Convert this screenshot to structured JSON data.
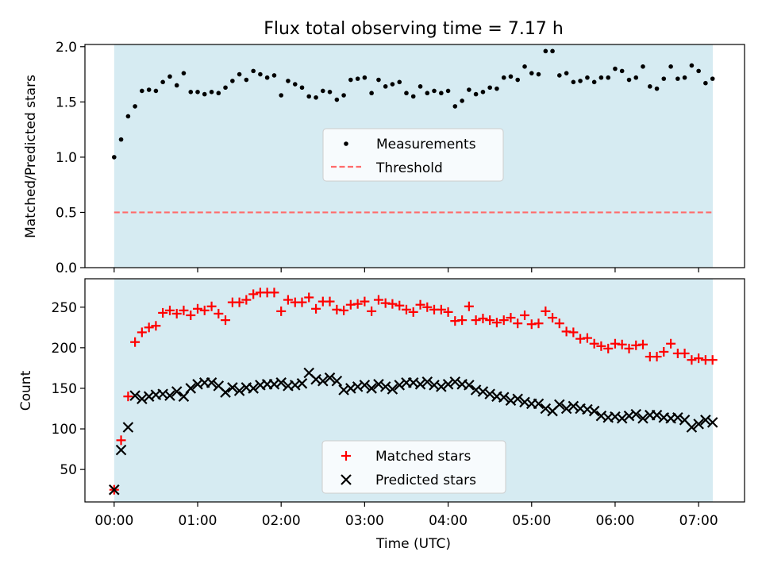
{
  "title": "Flux total observing time = 7.17 h",
  "chart_data": [
    {
      "type": "scatter",
      "ylabel": "Matched/Predicted stars",
      "xlabel": "",
      "x_unit": "hours since 00:00 UTC",
      "xlim": [
        -0.35,
        7.55
      ],
      "ylim": [
        0,
        2.02
      ],
      "yticks": [
        0.0,
        0.5,
        1.0,
        1.5,
        2.0
      ],
      "ytick_labels": [
        "0.0",
        "0.5",
        "1.0",
        "1.5",
        "2.0"
      ],
      "shaded_span": [
        0,
        7.17
      ],
      "shade_color": "#add8e6",
      "legend_position": "center",
      "series": [
        {
          "name": "Measurements",
          "marker": "dot",
          "color": "#000000",
          "x": [
            0.0,
            0.083,
            0.167,
            0.25,
            0.333,
            0.417,
            0.5,
            0.583,
            0.667,
            0.75,
            0.833,
            0.917,
            1.0,
            1.083,
            1.167,
            1.25,
            1.333,
            1.417,
            1.5,
            1.583,
            1.667,
            1.75,
            1.833,
            1.917,
            2.0,
            2.083,
            2.167,
            2.25,
            2.333,
            2.417,
            2.5,
            2.583,
            2.667,
            2.75,
            2.833,
            2.917,
            3.0,
            3.083,
            3.167,
            3.25,
            3.333,
            3.417,
            3.5,
            3.583,
            3.667,
            3.75,
            3.833,
            3.917,
            4.0,
            4.083,
            4.167,
            4.25,
            4.333,
            4.417,
            4.5,
            4.583,
            4.667,
            4.75,
            4.833,
            4.917,
            5.0,
            5.083,
            5.167,
            5.25,
            5.333,
            5.417,
            5.5,
            5.583,
            5.667,
            5.75,
            5.833,
            5.917,
            6.0,
            6.083,
            6.167,
            6.25,
            6.333,
            6.417,
            6.5,
            6.583,
            6.667,
            6.75,
            6.833,
            6.917,
            7.0,
            7.083,
            7.167
          ],
          "y": [
            1.0,
            1.16,
            1.37,
            1.46,
            1.6,
            1.61,
            1.6,
            1.68,
            1.73,
            1.65,
            1.76,
            1.59,
            1.59,
            1.57,
            1.59,
            1.58,
            1.63,
            1.69,
            1.75,
            1.7,
            1.78,
            1.75,
            1.72,
            1.74,
            1.56,
            1.69,
            1.66,
            1.63,
            1.55,
            1.54,
            1.6,
            1.59,
            1.52,
            1.56,
            1.7,
            1.71,
            1.72,
            1.58,
            1.7,
            1.64,
            1.66,
            1.68,
            1.58,
            1.55,
            1.64,
            1.58,
            1.6,
            1.58,
            1.6,
            1.46,
            1.51,
            1.61,
            1.57,
            1.59,
            1.63,
            1.62,
            1.72,
            1.73,
            1.7,
            1.82,
            1.76,
            1.75,
            1.96,
            1.96,
            1.74,
            1.76,
            1.68,
            1.69,
            1.72,
            1.68,
            1.72,
            1.72,
            1.8,
            1.78,
            1.7,
            1.72,
            1.82,
            1.64,
            1.62,
            1.71,
            1.82,
            1.71,
            1.72,
            1.83,
            1.78,
            1.67,
            1.71
          ]
        },
        {
          "name": "Threshold",
          "type": "line",
          "style": "dashed",
          "color": "#ff6b6b",
          "x": [
            0.0,
            7.17
          ],
          "y": [
            0.5,
            0.5
          ]
        }
      ]
    },
    {
      "type": "scatter",
      "ylabel": "Count",
      "xlabel": "Time (UTC)",
      "x_unit": "hours since 00:00 UTC",
      "xlim": [
        -0.35,
        7.55
      ],
      "ylim": [
        10,
        285
      ],
      "yticks": [
        50,
        100,
        150,
        200,
        250
      ],
      "ytick_labels": [
        "50",
        "100",
        "150",
        "200",
        "250"
      ],
      "xticks": [
        0,
        1,
        2,
        3,
        4,
        5,
        6,
        7
      ],
      "xtick_labels": [
        "00:00",
        "01:00",
        "02:00",
        "03:00",
        "04:00",
        "05:00",
        "06:00",
        "07:00"
      ],
      "shaded_span": [
        0,
        7.17
      ],
      "shade_color": "#add8e6",
      "legend_position": "lower center",
      "series": [
        {
          "name": "Matched stars",
          "marker": "plus",
          "color": "#ff0000",
          "x": [
            0.0,
            0.083,
            0.167,
            0.25,
            0.333,
            0.417,
            0.5,
            0.583,
            0.667,
            0.75,
            0.833,
            0.917,
            1.0,
            1.083,
            1.167,
            1.25,
            1.333,
            1.417,
            1.5,
            1.583,
            1.667,
            1.75,
            1.833,
            1.917,
            2.0,
            2.083,
            2.167,
            2.25,
            2.333,
            2.417,
            2.5,
            2.583,
            2.667,
            2.75,
            2.833,
            2.917,
            3.0,
            3.083,
            3.167,
            3.25,
            3.333,
            3.417,
            3.5,
            3.583,
            3.667,
            3.75,
            3.833,
            3.917,
            4.0,
            4.083,
            4.167,
            4.25,
            4.333,
            4.417,
            4.5,
            4.583,
            4.667,
            4.75,
            4.833,
            4.917,
            5.0,
            5.083,
            5.167,
            5.25,
            5.333,
            5.417,
            5.5,
            5.583,
            5.667,
            5.75,
            5.833,
            5.917,
            6.0,
            6.083,
            6.167,
            6.25,
            6.333,
            6.417,
            6.5,
            6.583,
            6.667,
            6.75,
            6.833,
            6.917,
            7.0,
            7.083,
            7.167
          ],
          "y": [
            25,
            86,
            140,
            207,
            219,
            225,
            227,
            243,
            246,
            242,
            246,
            240,
            248,
            246,
            251,
            242,
            234,
            256,
            256,
            259,
            266,
            268,
            268,
            268,
            245,
            259,
            256,
            256,
            262,
            248,
            257,
            257,
            247,
            246,
            253,
            254,
            257,
            245,
            259,
            255,
            254,
            252,
            247,
            244,
            253,
            250,
            247,
            247,
            244,
            233,
            234,
            251,
            234,
            236,
            234,
            231,
            234,
            237,
            230,
            240,
            229,
            230,
            245,
            237,
            230,
            220,
            219,
            211,
            212,
            205,
            202,
            199,
            205,
            204,
            199,
            203,
            204,
            189,
            189,
            195,
            205,
            193,
            193,
            185,
            187,
            185,
            185
          ]
        },
        {
          "name": "Predicted stars",
          "marker": "x",
          "color": "#000000",
          "x": [
            0.0,
            0.083,
            0.167,
            0.25,
            0.333,
            0.417,
            0.5,
            0.583,
            0.667,
            0.75,
            0.833,
            0.917,
            1.0,
            1.083,
            1.167,
            1.25,
            1.333,
            1.417,
            1.5,
            1.583,
            1.667,
            1.75,
            1.833,
            1.917,
            2.0,
            2.083,
            2.167,
            2.25,
            2.333,
            2.417,
            2.5,
            2.583,
            2.667,
            2.75,
            2.833,
            2.917,
            3.0,
            3.083,
            3.167,
            3.25,
            3.333,
            3.417,
            3.5,
            3.583,
            3.667,
            3.75,
            3.833,
            3.917,
            4.0,
            4.083,
            4.167,
            4.25,
            4.333,
            4.417,
            4.5,
            4.583,
            4.667,
            4.75,
            4.833,
            4.917,
            5.0,
            5.083,
            5.167,
            5.25,
            5.333,
            5.417,
            5.5,
            5.583,
            5.667,
            5.75,
            5.833,
            5.917,
            6.0,
            6.083,
            6.167,
            6.25,
            6.333,
            6.417,
            6.5,
            6.583,
            6.667,
            6.75,
            6.833,
            6.917,
            7.0,
            7.083,
            7.167
          ],
          "y": [
            25,
            74,
            102,
            141,
            137,
            140,
            142,
            143,
            141,
            146,
            140,
            150,
            155,
            157,
            157,
            153,
            145,
            151,
            147,
            151,
            150,
            154,
            155,
            155,
            157,
            153,
            154,
            156,
            169,
            161,
            159,
            163,
            159,
            148,
            150,
            152,
            154,
            150,
            155,
            152,
            149,
            154,
            157,
            157,
            155,
            158,
            154,
            152,
            155,
            158,
            155,
            154,
            148,
            146,
            143,
            140,
            139,
            135,
            137,
            133,
            131,
            131,
            125,
            122,
            130,
            125,
            128,
            125,
            124,
            122,
            116,
            114,
            115,
            113,
            116,
            118,
            113,
            117,
            117,
            114,
            113,
            114,
            111,
            102,
            106,
            111,
            108
          ]
        }
      ]
    }
  ]
}
